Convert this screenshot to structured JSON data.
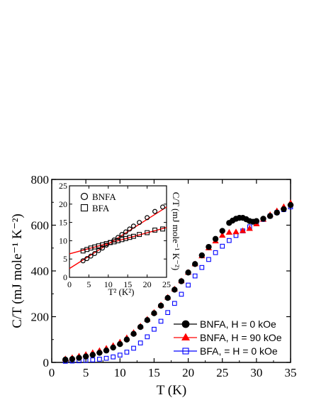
{
  "chart_data": {
    "type": "scatter",
    "xlabel": "T (K)",
    "ylabel": "C/T (mJ mole⁻¹ K⁻²)",
    "xlim": [
      0,
      35
    ],
    "ylim": [
      0,
      800
    ],
    "xticks": [
      "0",
      "5",
      "10",
      "15",
      "20",
      "25",
      "30",
      "35"
    ],
    "yticks": [
      "0",
      "200",
      "400",
      "600",
      "800"
    ],
    "grid": false,
    "legend_position": "bottom-right",
    "series": [
      {
        "name": "BNFA, H = 0 kOe",
        "marker": "filled-circle",
        "color": "#000000",
        "x": [
          2,
          3,
          4,
          5,
          6,
          7,
          8,
          9,
          10,
          11,
          12,
          13,
          14,
          15,
          16,
          17,
          18,
          19,
          20,
          21,
          22,
          23,
          24,
          25,
          26,
          26.5,
          27,
          27.5,
          28,
          28.5,
          29,
          29.5,
          30,
          31,
          32,
          33,
          34,
          35
        ],
        "y": [
          12,
          15,
          20,
          26,
          33,
          42,
          52,
          65,
          80,
          100,
          125,
          155,
          185,
          215,
          248,
          282,
          318,
          355,
          393,
          430,
          468,
          505,
          540,
          575,
          610,
          620,
          628,
          632,
          632,
          626,
          618,
          615,
          618,
          628,
          640,
          655,
          670,
          688
        ]
      },
      {
        "name": "BNFA, H = 90 kOe",
        "marker": "filled-triangle",
        "color": "#ff0000",
        "x": [
          2,
          3,
          4,
          5,
          6,
          7,
          8,
          9,
          10,
          11,
          12,
          13,
          14,
          15,
          16,
          17,
          18,
          19,
          20,
          21,
          22,
          23,
          24,
          25,
          26,
          27,
          28,
          29,
          30,
          31,
          32,
          33,
          34,
          35
        ],
        "y": [
          15,
          20,
          27,
          34,
          42,
          51,
          61,
          73,
          88,
          107,
          130,
          158,
          188,
          218,
          250,
          284,
          320,
          356,
          393,
          430,
          465,
          500,
          530,
          555,
          568,
          570,
          575,
          585,
          605,
          625,
          645,
          662,
          680,
          697
        ]
      },
      {
        "name": "BFA, = H = 0 kOe",
        "marker": "open-square",
        "color": "#0000ff",
        "x": [
          2,
          3,
          4,
          5,
          6,
          7,
          8,
          9,
          10,
          11,
          12,
          13,
          14,
          15,
          16,
          17,
          18,
          19,
          20,
          21,
          22,
          23,
          24,
          25,
          26,
          27,
          28,
          29,
          30,
          31,
          32,
          33,
          34,
          35
        ],
        "y": [
          5,
          6,
          7,
          9,
          11,
          14,
          18,
          24,
          32,
          45,
          62,
          85,
          112,
          145,
          180,
          218,
          258,
          298,
          338,
          378,
          415,
          450,
          480,
          508,
          533,
          555,
          575,
          593,
          610,
          625,
          640,
          655,
          668,
          680
        ]
      }
    ],
    "inset": {
      "type": "scatter",
      "xlabel": "T² (K²)",
      "ylabel": "C/T (mJ mole⁻¹ K⁻²)",
      "xlim": [
        0,
        25
      ],
      "ylim": [
        0,
        25
      ],
      "xticks": [
        "0",
        "5",
        "10",
        "15",
        "20",
        "25"
      ],
      "yticks": [
        "0",
        "5",
        "10",
        "15",
        "20",
        "25"
      ],
      "series": [
        {
          "name": "BNFA",
          "marker": "open-circle",
          "x": [
            3.5,
            4.5,
            5.5,
            6.5,
            7.5,
            8.5,
            9.5,
            10.5,
            11.5,
            12.5,
            13.5,
            14.5,
            15.5,
            16.5,
            18,
            20,
            22,
            24
          ],
          "y": [
            4.5,
            5.1,
            5.8,
            6.5,
            7.3,
            8.0,
            8.8,
            9.5,
            10.2,
            10.9,
            11.7,
            12.4,
            13.2,
            14.0,
            15.0,
            16.3,
            18.0,
            19.2
          ]
        },
        {
          "name": "BFA",
          "marker": "open-square",
          "x": [
            3.5,
            4.5,
            5.5,
            6.5,
            7.5,
            8.5,
            9.5,
            10.5,
            11.5,
            12.5,
            13.5,
            14.5,
            15.5,
            16.5,
            18,
            20,
            22,
            24
          ],
          "y": [
            7.2,
            7.6,
            8.0,
            8.3,
            8.6,
            8.9,
            9.2,
            9.5,
            9.7,
            10.0,
            10.3,
            10.6,
            10.9,
            11.2,
            11.7,
            12.2,
            12.9,
            13.2
          ]
        }
      ],
      "fits": [
        {
          "x": [
            0,
            25
          ],
          "y": [
            2.4,
            19.2
          ],
          "color": "#ff0000"
        },
        {
          "x": [
            0,
            25
          ],
          "y": [
            6.4,
            13.6
          ],
          "color": "#ff0000"
        }
      ]
    }
  }
}
